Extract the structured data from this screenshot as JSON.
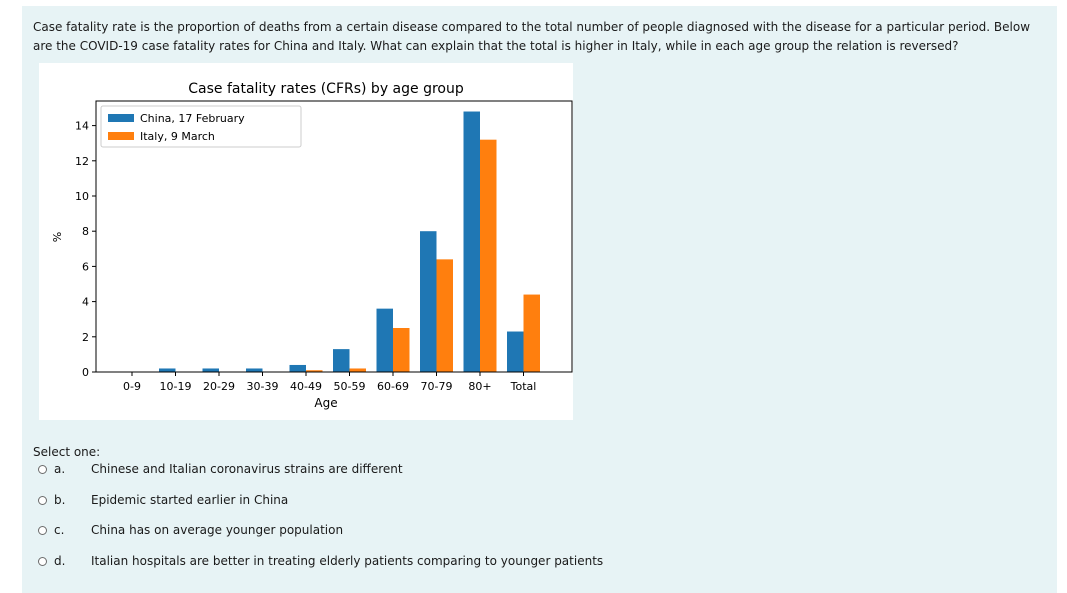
{
  "question": "Case fatality rate is the proportion of deaths from a certain disease compared to the total number of people diagnosed with the disease for a particular period. Below are the COVID-19 case fatality rates for China and Italy. What can explain that the total is higher in Italy, while in each age group the relation is reversed?",
  "select_label": "Select one:",
  "options": [
    {
      "letter": "a.",
      "text": "Chinese and Italian coronavirus strains are different"
    },
    {
      "letter": "b.",
      "text": "Epidemic started earlier in China"
    },
    {
      "letter": "c.",
      "text": "China has on average younger population"
    },
    {
      "letter": "d.",
      "text": "Italian hospitals are better in treating elderly patients comparing to younger patients"
    }
  ],
  "chart_data": {
    "type": "bar",
    "title": "Case fatality rates (CFRs) by age group",
    "xlabel": "Age",
    "ylabel": "%",
    "categories": [
      "0-9",
      "10-19",
      "20-29",
      "30-39",
      "40-49",
      "50-59",
      "60-69",
      "70-79",
      "80+",
      "Total"
    ],
    "series": [
      {
        "name": "China, 17 February",
        "color": "#1f77b4",
        "values": [
          0.0,
          0.2,
          0.2,
          0.2,
          0.4,
          1.3,
          3.6,
          8.0,
          14.8,
          2.3
        ]
      },
      {
        "name": "Italy, 9 March",
        "color": "#ff7f0e",
        "values": [
          0.0,
          0.0,
          0.0,
          0.0,
          0.1,
          0.2,
          2.5,
          6.4,
          13.2,
          4.4
        ]
      }
    ],
    "yticks": [
      0,
      2,
      4,
      6,
      8,
      10,
      12,
      14
    ],
    "ylim": [
      0,
      15.5
    ],
    "legend_position": "top-left",
    "grid": false
  }
}
